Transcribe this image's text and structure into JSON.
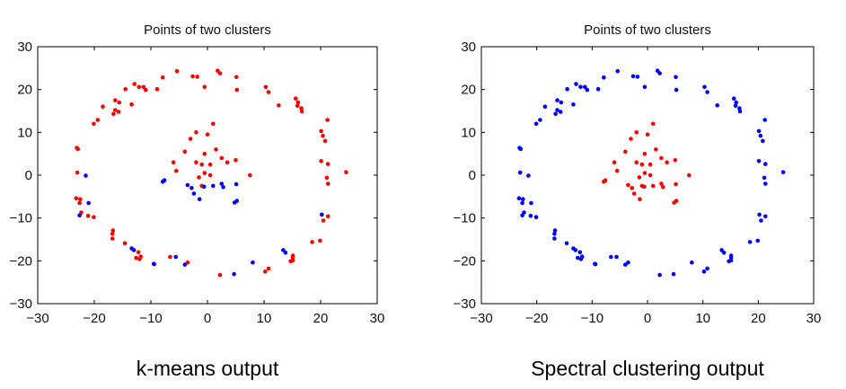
{
  "captions": [
    "k-means output",
    "Spectral clustering output"
  ],
  "colors": {
    "red_cluster": "#ff0000",
    "blue_cluster": "#0000ff",
    "axes": "#000000"
  },
  "chart_data": [
    {
      "type": "scatter",
      "title": "Points of two clusters",
      "xlim": [
        -30,
        30
      ],
      "ylim": [
        -30,
        30
      ],
      "xticks": [
        -30,
        -20,
        -10,
        0,
        10,
        20,
        30
      ],
      "yticks": [
        -30,
        -20,
        -10,
        0,
        10,
        20,
        30
      ],
      "xtick_labels": [
        "−30",
        "−20",
        "−10",
        "0",
        "10",
        "20",
        "30"
      ],
      "ytick_labels": [
        "−30",
        "−20",
        "−10",
        "0",
        "10",
        "20",
        "30"
      ],
      "grid": false,
      "series": [
        {
          "color": "#ff0000",
          "points": [
            [
              -5.4,
              24.3
            ],
            [
              1.8,
              24.4
            ],
            [
              2.2,
              23.8
            ],
            [
              -2.6,
              23.1
            ],
            [
              -1.8,
              23.0
            ],
            [
              -7.9,
              22.8
            ],
            [
              5.1,
              22.9
            ],
            [
              -12.9,
              21.3
            ],
            [
              -12.1,
              20.6
            ],
            [
              -11.3,
              20.6
            ],
            [
              -10.9,
              19.9
            ],
            [
              -14.5,
              20.1
            ],
            [
              -8.9,
              20.1
            ],
            [
              -0.5,
              20.6
            ],
            [
              5.2,
              19.9
            ],
            [
              10.3,
              20.6
            ],
            [
              10.8,
              19.4
            ],
            [
              -16.3,
              17.5
            ],
            [
              -15.6,
              17.0
            ],
            [
              -13.4,
              16.5
            ],
            [
              12.6,
              16.3
            ],
            [
              15.6,
              17.9
            ],
            [
              16.0,
              17.0
            ],
            [
              15.9,
              16.2
            ],
            [
              16.6,
              15.6
            ],
            [
              16.7,
              14.9
            ],
            [
              -16.3,
              15.2
            ],
            [
              -18.5,
              16.0
            ],
            [
              -15.7,
              14.8
            ],
            [
              -16.6,
              14.3
            ],
            [
              -20.1,
              12.0
            ],
            [
              -19.4,
              12.9
            ],
            [
              21.2,
              12.9
            ],
            [
              20.1,
              10.3
            ],
            [
              20.4,
              9.2
            ],
            [
              20.8,
              8.0
            ],
            [
              -23.1,
              6.4
            ],
            [
              -22.9,
              6.1
            ],
            [
              20.1,
              3.3
            ],
            [
              21.3,
              2.6
            ],
            [
              24.5,
              0.7
            ],
            [
              -23.0,
              0.6
            ],
            [
              21.1,
              -0.6
            ],
            [
              21.3,
              -2.0
            ],
            [
              -22.5,
              -5.6
            ],
            [
              -22.6,
              -6.5
            ],
            [
              -23.2,
              -5.4
            ],
            [
              -22.3,
              -8.7
            ],
            [
              -21.1,
              -9.5
            ],
            [
              -20.1,
              -9.8
            ],
            [
              -16.7,
              -12.9
            ],
            [
              -16.8,
              -13.7
            ],
            [
              -16.8,
              -14.8
            ],
            [
              -14.6,
              -15.9
            ],
            [
              19.9,
              -15.3
            ],
            [
              18.5,
              -15.6
            ],
            [
              21.3,
              -9.6
            ],
            [
              20.5,
              -10.6
            ],
            [
              15.1,
              -18.8
            ],
            [
              15.1,
              -19.3
            ],
            [
              15.1,
              -19.9
            ],
            [
              14.7,
              -20.1
            ],
            [
              -12.2,
              -18.0
            ],
            [
              -12.6,
              -19.3
            ],
            [
              -12.0,
              -19.6
            ],
            [
              -11.8,
              -19.0
            ],
            [
              -9.4,
              -20.8
            ],
            [
              -6.6,
              -19.1
            ],
            [
              -3.5,
              -20.4
            ],
            [
              2.2,
              -23.3
            ],
            [
              10.2,
              -22.5
            ],
            [
              10.8,
              -21.8
            ],
            [
              1.0,
              12.0
            ],
            [
              -2.0,
              10.0
            ],
            [
              -3.0,
              8.5
            ],
            [
              0.0,
              9.5
            ],
            [
              -4.0,
              5.5
            ],
            [
              -0.5,
              5.0
            ],
            [
              1.5,
              6.0
            ],
            [
              -6.0,
              3.0
            ],
            [
              -5.5,
              1.0
            ],
            [
              -2.0,
              3.0
            ],
            [
              -1.0,
              2.5
            ],
            [
              0.5,
              2.5
            ],
            [
              -0.5,
              0.5
            ],
            [
              0.5,
              0.0
            ],
            [
              2.5,
              4.0
            ],
            [
              3.5,
              3.0
            ],
            [
              5.0,
              3.5
            ],
            [
              7.5,
              0.0
            ],
            [
              -1.5,
              -0.5
            ],
            [
              -1.0,
              -2.5
            ]
          ]
        },
        {
          "color": "#0000ff",
          "points": [
            [
              -21.5,
              -0.1
            ],
            [
              -22.6,
              -9.4
            ],
            [
              -21.0,
              -6.5
            ],
            [
              -13.4,
              -17.1
            ],
            [
              -13.0,
              -17.5
            ],
            [
              -9.5,
              -20.7
            ],
            [
              -5.6,
              -19.1
            ],
            [
              -4.0,
              -20.9
            ],
            [
              4.7,
              -23.1
            ],
            [
              8.0,
              -20.4
            ],
            [
              13.4,
              -17.5
            ],
            [
              13.8,
              -18.1
            ],
            [
              20.2,
              -9.2
            ],
            [
              -7.9,
              -1.5
            ],
            [
              -7.6,
              -1.2
            ],
            [
              -3.5,
              -2.3
            ],
            [
              -2.8,
              -3.0
            ],
            [
              -2.4,
              -4.3
            ],
            [
              -1.4,
              -5.6
            ],
            [
              -0.6,
              -2.7
            ],
            [
              1.0,
              -2.5
            ],
            [
              2.5,
              -2.0
            ],
            [
              2.8,
              -2.8
            ],
            [
              5.1,
              -2.1
            ],
            [
              5.2,
              -6.0
            ],
            [
              4.8,
              -6.4
            ]
          ]
        }
      ]
    },
    {
      "type": "scatter",
      "title": "Points of two clusters",
      "xlim": [
        -30,
        30
      ],
      "ylim": [
        -30,
        30
      ],
      "xticks": [
        -30,
        -20,
        -10,
        0,
        10,
        20,
        30
      ],
      "yticks": [
        -30,
        -20,
        -10,
        0,
        10,
        20,
        30
      ],
      "xtick_labels": [
        "−30",
        "−20",
        "−10",
        "0",
        "10",
        "20",
        "30"
      ],
      "ytick_labels": [
        "−30",
        "−20",
        "−10",
        "0",
        "10",
        "20",
        "30"
      ],
      "grid": false,
      "series": [
        {
          "color": "#ff0000",
          "points": [
            [
              1.0,
              12.0
            ],
            [
              -2.0,
              10.0
            ],
            [
              -3.0,
              8.5
            ],
            [
              0.0,
              9.5
            ],
            [
              -4.0,
              5.5
            ],
            [
              -0.5,
              5.0
            ],
            [
              1.5,
              6.0
            ],
            [
              -6.0,
              3.0
            ],
            [
              -5.5,
              1.0
            ],
            [
              -2.0,
              3.0
            ],
            [
              -1.0,
              2.5
            ],
            [
              0.5,
              2.5
            ],
            [
              -0.5,
              0.5
            ],
            [
              0.5,
              0.0
            ],
            [
              2.5,
              4.0
            ],
            [
              3.5,
              3.0
            ],
            [
              5.0,
              3.5
            ],
            [
              7.5,
              0.0
            ],
            [
              -1.5,
              -0.5
            ],
            [
              -1.0,
              -2.5
            ],
            [
              -7.9,
              -1.5
            ],
            [
              -7.6,
              -1.2
            ],
            [
              -3.5,
              -2.3
            ],
            [
              -2.8,
              -3.0
            ],
            [
              -2.4,
              -4.3
            ],
            [
              -1.4,
              -5.6
            ],
            [
              -0.6,
              -2.7
            ],
            [
              1.0,
              -2.5
            ],
            [
              2.5,
              -2.0
            ],
            [
              2.8,
              -2.8
            ],
            [
              5.1,
              -2.1
            ],
            [
              5.2,
              -6.0
            ],
            [
              4.8,
              -6.4
            ]
          ]
        },
        {
          "color": "#0000ff",
          "points": [
            [
              -5.4,
              24.3
            ],
            [
              1.8,
              24.4
            ],
            [
              2.2,
              23.8
            ],
            [
              -2.6,
              23.1
            ],
            [
              -1.8,
              23.0
            ],
            [
              -7.9,
              22.8
            ],
            [
              5.1,
              22.9
            ],
            [
              -12.9,
              21.3
            ],
            [
              -12.1,
              20.6
            ],
            [
              -11.3,
              20.6
            ],
            [
              -10.9,
              19.9
            ],
            [
              -14.5,
              20.1
            ],
            [
              -8.9,
              20.1
            ],
            [
              -0.5,
              20.6
            ],
            [
              5.2,
              19.9
            ],
            [
              10.3,
              20.6
            ],
            [
              10.8,
              19.4
            ],
            [
              -16.3,
              17.5
            ],
            [
              -15.6,
              17.0
            ],
            [
              -13.4,
              16.5
            ],
            [
              12.6,
              16.3
            ],
            [
              15.6,
              17.9
            ],
            [
              16.0,
              17.0
            ],
            [
              15.9,
              16.2
            ],
            [
              16.6,
              15.6
            ],
            [
              16.7,
              14.9
            ],
            [
              -16.3,
              15.2
            ],
            [
              -18.5,
              16.0
            ],
            [
              -15.7,
              14.8
            ],
            [
              -16.6,
              14.3
            ],
            [
              -20.1,
              12.0
            ],
            [
              -19.4,
              12.9
            ],
            [
              21.2,
              12.9
            ],
            [
              20.1,
              10.3
            ],
            [
              20.4,
              9.2
            ],
            [
              20.8,
              8.0
            ],
            [
              -23.1,
              6.4
            ],
            [
              -22.9,
              6.1
            ],
            [
              20.1,
              3.3
            ],
            [
              21.3,
              2.6
            ],
            [
              24.5,
              0.7
            ],
            [
              -23.0,
              0.6
            ],
            [
              21.1,
              -0.6
            ],
            [
              21.3,
              -2.0
            ],
            [
              -22.5,
              -5.6
            ],
            [
              -22.6,
              -6.5
            ],
            [
              -23.2,
              -5.4
            ],
            [
              -22.3,
              -8.7
            ],
            [
              -21.1,
              -9.5
            ],
            [
              -20.1,
              -9.8
            ],
            [
              -16.7,
              -12.9
            ],
            [
              -16.8,
              -13.7
            ],
            [
              -16.8,
              -14.8
            ],
            [
              -14.6,
              -15.9
            ],
            [
              19.9,
              -15.3
            ],
            [
              18.5,
              -15.6
            ],
            [
              21.3,
              -9.6
            ],
            [
              20.5,
              -10.6
            ],
            [
              15.1,
              -18.8
            ],
            [
              15.1,
              -19.3
            ],
            [
              15.1,
              -19.9
            ],
            [
              14.7,
              -20.1
            ],
            [
              -12.2,
              -18.0
            ],
            [
              -12.6,
              -19.3
            ],
            [
              -12.0,
              -19.6
            ],
            [
              -11.8,
              -19.0
            ],
            [
              -9.4,
              -20.8
            ],
            [
              -6.6,
              -19.1
            ],
            [
              -3.5,
              -20.4
            ],
            [
              2.2,
              -23.3
            ],
            [
              10.2,
              -22.5
            ],
            [
              10.8,
              -21.8
            ],
            [
              -21.5,
              -0.1
            ],
            [
              -22.6,
              -9.4
            ],
            [
              -21.0,
              -6.5
            ],
            [
              -13.4,
              -17.1
            ],
            [
              -13.0,
              -17.5
            ],
            [
              -9.5,
              -20.7
            ],
            [
              -5.6,
              -19.1
            ],
            [
              -4.0,
              -20.9
            ],
            [
              4.7,
              -23.1
            ],
            [
              8.0,
              -20.4
            ],
            [
              13.4,
              -17.5
            ],
            [
              13.8,
              -18.1
            ],
            [
              20.2,
              -9.2
            ]
          ]
        }
      ]
    }
  ]
}
